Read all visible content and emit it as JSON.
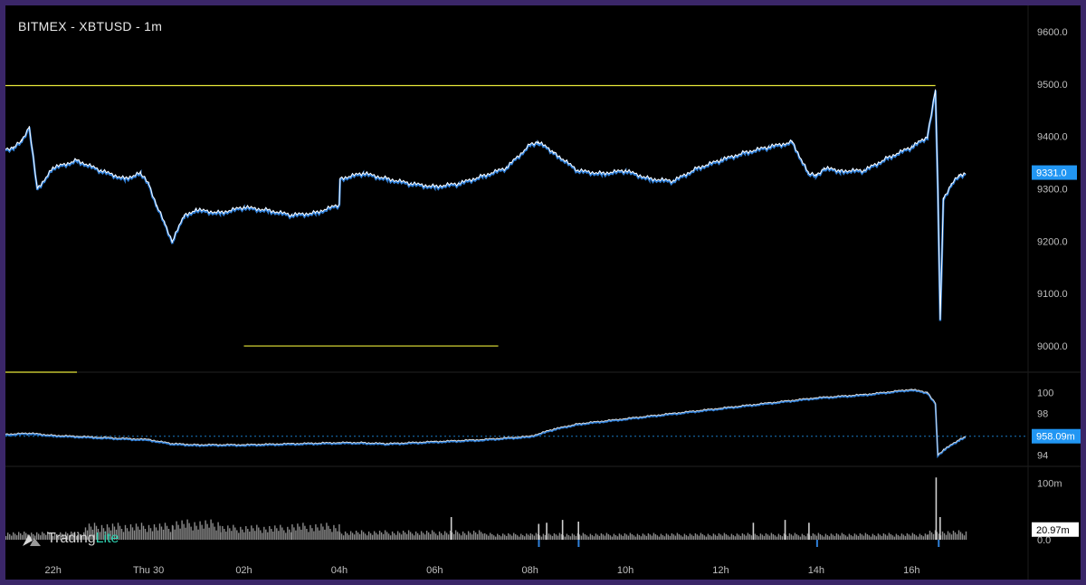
{
  "title": "BITMEX - XBTUSD - 1m",
  "brand": {
    "name_main": "Trading",
    "name_accent": "Lite"
  },
  "colors": {
    "background": "#000000",
    "frame": "#3a2668",
    "candle_line": "#ffffff",
    "candle_shadow": "#2f7fd8",
    "level_line": "#e8e83a",
    "label_bg": "#2196f3",
    "volume_bar": "#8a8a8a",
    "volume_spike": "#d0d0d0"
  },
  "chart_data": [
    {
      "type": "line",
      "name": "price",
      "x": [
        "21:00",
        "21:10",
        "21:20",
        "21:30",
        "21:40",
        "22:00",
        "22:30",
        "23:00",
        "23:30",
        "23:50",
        "00:00",
        "00:10",
        "00:20",
        "00:30",
        "00:45",
        "01:00",
        "01:30",
        "02:00",
        "02:30",
        "03:00",
        "03:30",
        "04:00",
        "04:01",
        "04:30",
        "05:00",
        "05:30",
        "06:00",
        "06:30",
        "07:00",
        "07:30",
        "08:00",
        "08:10",
        "08:30",
        "09:00",
        "09:30",
        "10:00",
        "10:30",
        "11:00",
        "11:30",
        "12:00",
        "12:30",
        "13:00",
        "13:30",
        "13:50",
        "14:00",
        "14:10",
        "14:30",
        "15:00",
        "15:30",
        "16:00",
        "16:20",
        "16:30",
        "16:33",
        "16:36",
        "16:40",
        "16:50",
        "17:00",
        "17:08"
      ],
      "values": [
        9375,
        9380,
        9390,
        9420,
        9300,
        9340,
        9355,
        9335,
        9320,
        9330,
        9310,
        9270,
        9235,
        9200,
        9250,
        9260,
        9255,
        9265,
        9260,
        9250,
        9255,
        9270,
        9320,
        9330,
        9320,
        9310,
        9305,
        9310,
        9325,
        9340,
        9385,
        9390,
        9370,
        9335,
        9330,
        9335,
        9320,
        9315,
        9340,
        9355,
        9370,
        9380,
        9390,
        9330,
        9325,
        9340,
        9335,
        9335,
        9360,
        9380,
        9400,
        9490,
        9300,
        9050,
        9280,
        9310,
        9325,
        9331
      ],
      "y_ticks": [
        9000,
        9100,
        9200,
        9300,
        9400,
        9500,
        9600
      ],
      "ylim": [
        8950,
        9650
      ],
      "last_value_label": "9331.0",
      "levels": [
        {
          "value": 9497,
          "from": "21:00",
          "to": "16:30"
        },
        {
          "value": 9000,
          "from": "02:00",
          "to": "07:20"
        },
        {
          "value": 8950,
          "from": "21:00",
          "to": "22:30"
        }
      ]
    },
    {
      "type": "line",
      "name": "indicator",
      "x": [
        "21:00",
        "21:30",
        "22:00",
        "23:00",
        "00:00",
        "00:30",
        "01:00",
        "02:00",
        "03:00",
        "04:00",
        "04:30",
        "05:00",
        "06:00",
        "07:00",
        "08:00",
        "08:30",
        "09:00",
        "10:00",
        "11:00",
        "12:00",
        "13:00",
        "14:00",
        "15:00",
        "16:00",
        "16:20",
        "16:30",
        "16:33",
        "16:40",
        "17:00",
        "17:08"
      ],
      "values": [
        960,
        961,
        959,
        957,
        955,
        951,
        950,
        950,
        951,
        952,
        952,
        951,
        953,
        955,
        958,
        965,
        970,
        975,
        980,
        985,
        990,
        995,
        998,
        1003,
        1000,
        990,
        940,
        945,
        955,
        958
      ],
      "tick_labels": [
        "100",
        "98",
        "94"
      ],
      "tick_values": [
        1000,
        980,
        940
      ],
      "ylim": [
        930,
        1015
      ],
      "last_value_label": "958.09m"
    },
    {
      "type": "bar",
      "name": "volume",
      "tick_labels": [
        "100m",
        "0.0"
      ],
      "tick_values": [
        100,
        0
      ],
      "ylim": [
        0,
        120
      ],
      "last_value_label": "20.97m",
      "profile": [
        {
          "from": "21:00",
          "to": "22:40",
          "level": 12
        },
        {
          "from": "22:40",
          "to": "00:30",
          "level": 25
        },
        {
          "from": "00:30",
          "to": "01:30",
          "level": 30
        },
        {
          "from": "01:30",
          "to": "03:00",
          "level": 22
        },
        {
          "from": "03:00",
          "to": "04:00",
          "level": 25
        },
        {
          "from": "04:00",
          "to": "07:00",
          "level": 14
        },
        {
          "from": "07:00",
          "to": "08:00",
          "level": 10
        },
        {
          "from": "08:00",
          "to": "16:20",
          "level": 10
        },
        {
          "from": "16:20",
          "to": "17:08",
          "level": 14
        }
      ],
      "spikes": [
        {
          "x": "06:20",
          "value": 40
        },
        {
          "x": "08:10",
          "value": 28
        },
        {
          "x": "08:20",
          "value": 30
        },
        {
          "x": "08:40",
          "value": 35
        },
        {
          "x": "09:00",
          "value": 32
        },
        {
          "x": "12:40",
          "value": 30
        },
        {
          "x": "13:20",
          "value": 35
        },
        {
          "x": "13:50",
          "value": 30
        },
        {
          "x": "16:30",
          "value": 110
        },
        {
          "x": "16:35",
          "value": 40
        }
      ]
    }
  ],
  "x_axis_labels": [
    {
      "label": "22h",
      "time": "22:00"
    },
    {
      "label": "Thu 30",
      "time": "00:00"
    },
    {
      "label": "02h",
      "time": "02:00"
    },
    {
      "label": "04h",
      "time": "04:00"
    },
    {
      "label": "06h",
      "time": "06:00"
    },
    {
      "label": "08h",
      "time": "08:00"
    },
    {
      "label": "10h",
      "time": "10:00"
    },
    {
      "label": "12h",
      "time": "12:00"
    },
    {
      "label": "14h",
      "time": "14:00"
    },
    {
      "label": "16h",
      "time": "16:00"
    }
  ]
}
